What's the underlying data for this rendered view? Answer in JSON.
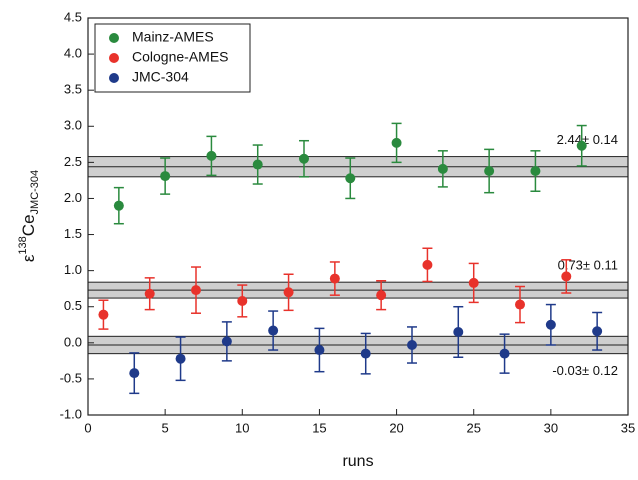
{
  "chart_data": {
    "type": "scatter",
    "xlabel": "runs",
    "ylabel": {
      "symbol": "ε",
      "sup": "138",
      "main": "Ce",
      "sub": "JMC-304"
    },
    "xlim": [
      0,
      35
    ],
    "ylim": [
      -1.0,
      4.5
    ],
    "xticks": [
      0,
      5,
      10,
      15,
      20,
      25,
      30,
      35
    ],
    "yticks": [
      {
        "value": -1,
        "label": "-1.0"
      },
      {
        "value": -0.5,
        "label": "-0.5"
      },
      {
        "value": 0,
        "label": "0.0"
      },
      {
        "value": 0.5,
        "label": "0.5"
      },
      {
        "value": 1,
        "label": "1.0"
      },
      {
        "value": 1.5,
        "label": "1.5"
      },
      {
        "value": 2,
        "label": "2.0"
      },
      {
        "value": 2.5,
        "label": "2.5"
      },
      {
        "value": 3,
        "label": "3.0"
      },
      {
        "value": 3.5,
        "label": "3.5"
      },
      {
        "value": 4,
        "label": "4.0"
      },
      {
        "value": 4.5,
        "label": "4.5"
      }
    ],
    "legend": "top-left",
    "series": [
      {
        "name": "Mainz-AMES",
        "color": "#2a8a3e",
        "x": [
          2,
          5,
          8,
          11,
          14,
          17,
          20,
          23,
          26,
          29,
          32
        ],
        "values": [
          1.9,
          2.31,
          2.59,
          2.47,
          2.55,
          2.28,
          2.77,
          2.41,
          2.38,
          2.38,
          2.73
        ],
        "errors": [
          0.25,
          0.25,
          0.27,
          0.27,
          0.25,
          0.28,
          0.27,
          0.25,
          0.3,
          0.28,
          0.28
        ]
      },
      {
        "name": "Cologne-AMES",
        "color": "#e8322b",
        "x": [
          1,
          4,
          7,
          10,
          13,
          16,
          19,
          22,
          25,
          28,
          31
        ],
        "values": [
          0.39,
          0.68,
          0.73,
          0.58,
          0.7,
          0.89,
          0.66,
          1.08,
          0.83,
          0.53,
          0.92
        ],
        "errors": [
          0.2,
          0.22,
          0.32,
          0.22,
          0.25,
          0.23,
          0.2,
          0.23,
          0.27,
          0.25,
          0.23
        ]
      },
      {
        "name": "JMC-304",
        "color": "#1f3a8a",
        "x": [
          3,
          6,
          9,
          12,
          15,
          18,
          21,
          24,
          27,
          30,
          33
        ],
        "values": [
          -0.42,
          -0.22,
          0.02,
          0.17,
          -0.1,
          -0.15,
          -0.03,
          0.15,
          -0.15,
          0.25,
          0.16
        ],
        "errors": [
          0.28,
          0.3,
          0.27,
          0.27,
          0.3,
          0.28,
          0.25,
          0.35,
          0.27,
          0.28,
          0.26
        ]
      }
    ],
    "bands": [
      {
        "mean": 2.44,
        "err": 0.14,
        "label": "2.44± 0.14"
      },
      {
        "mean": 0.73,
        "err": 0.11,
        "label": "0.73± 0.11"
      },
      {
        "mean": -0.03,
        "err": 0.12,
        "label": "-0.03± 0.12"
      }
    ]
  }
}
